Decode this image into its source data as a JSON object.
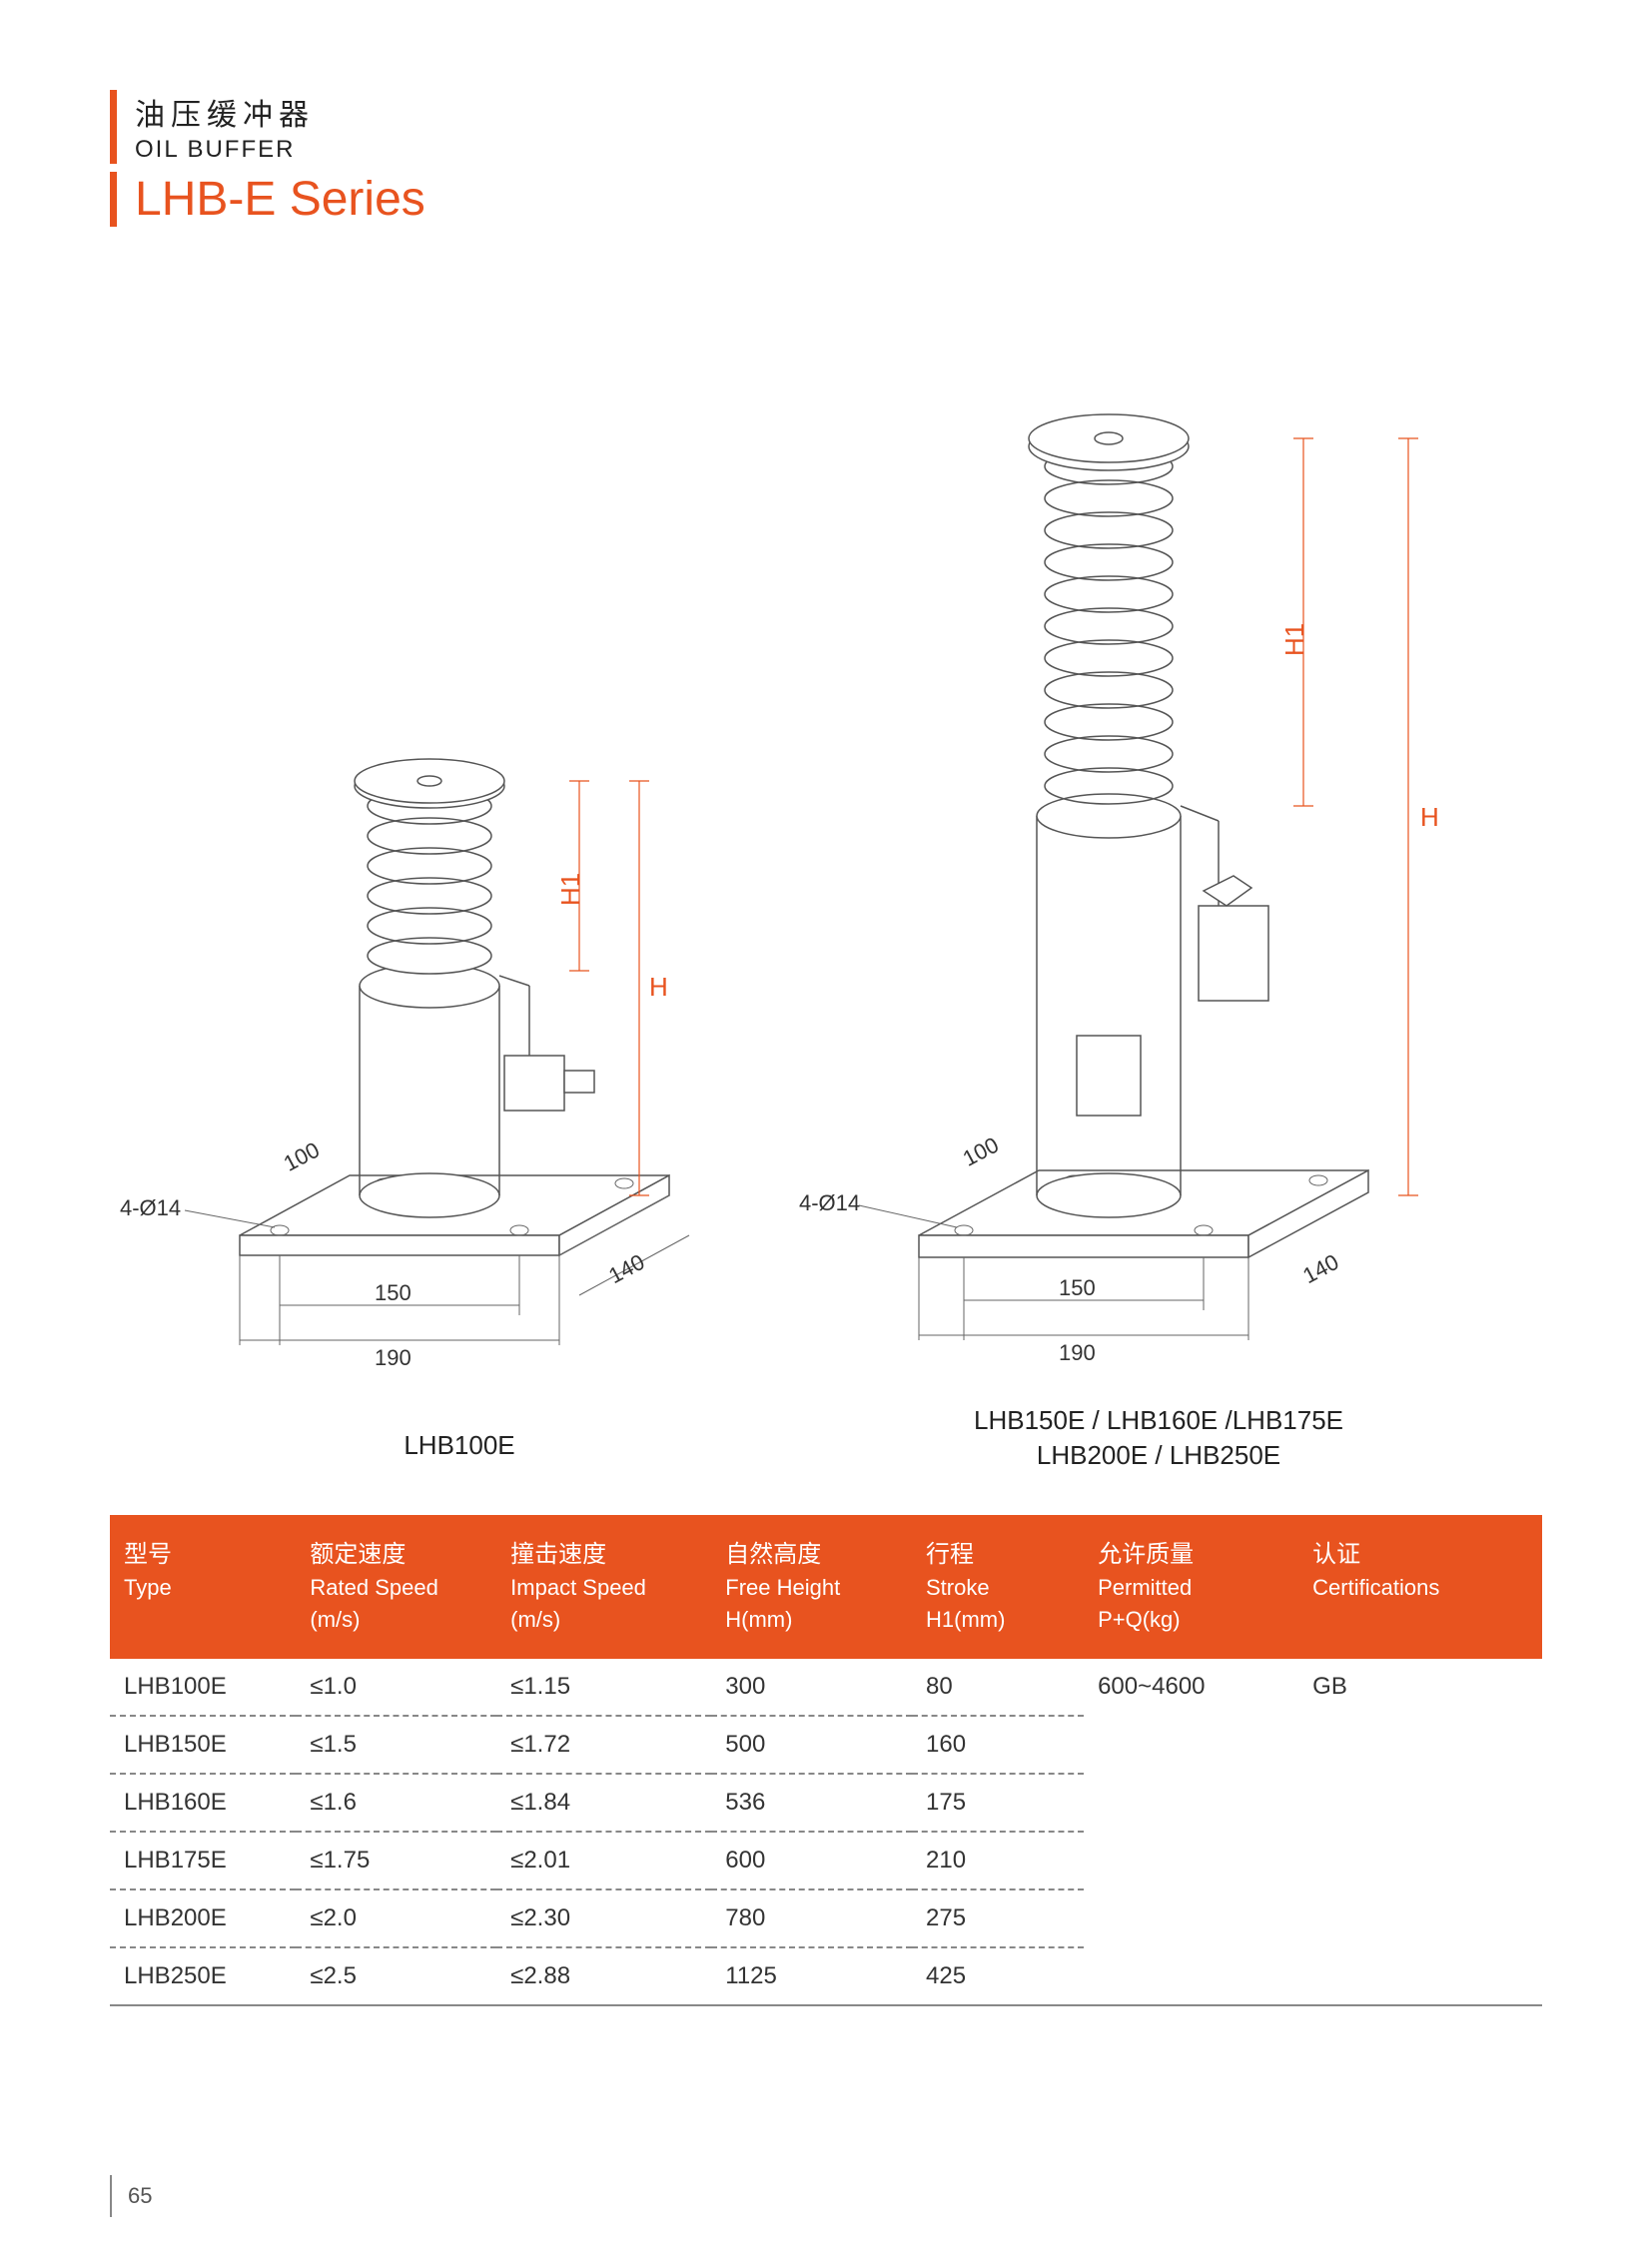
{
  "header": {
    "cn_title": "油压缓冲器",
    "en_title": "OIL BUFFER",
    "series_title": "LHB-E Series"
  },
  "colors": {
    "accent": "#e8531f",
    "line": "#666666",
    "text": "#333333",
    "table_header_bg": "#e8531f",
    "table_header_fg": "#ffffff",
    "dash": "#888888"
  },
  "diagrams": {
    "left": {
      "label": "LHB100E",
      "dims": {
        "hole": "4-Ø14",
        "base_inner": "150",
        "base_outer": "190",
        "depth_inner": "100",
        "depth_outer": "140",
        "height": "H",
        "spring": "H1"
      }
    },
    "right": {
      "label_line1": "LHB150E / LHB160E /LHB175E",
      "label_line2": "LHB200E / LHB250E",
      "dims": {
        "hole": "4-Ø14",
        "base_inner": "150",
        "base_outer": "190",
        "depth_inner": "100",
        "depth_outer": "140",
        "height": "H",
        "spring": "H1"
      }
    }
  },
  "table": {
    "columns": [
      {
        "cn": "型号",
        "en": "Type",
        "un": ""
      },
      {
        "cn": "额定速度",
        "en": "Rated Speed",
        "un": "(m/s)"
      },
      {
        "cn": "撞击速度",
        "en": "Impact Speed",
        "un": "(m/s)"
      },
      {
        "cn": "自然高度",
        "en": "Free Height",
        "un": "H(mm)"
      },
      {
        "cn": "行程",
        "en": "Stroke",
        "un": "H1(mm)"
      },
      {
        "cn": "允许质量",
        "en": "Permitted",
        "un": "P+Q(kg)"
      },
      {
        "cn": "认证",
        "en": "Certifications",
        "un": ""
      }
    ],
    "rows": [
      {
        "cells": [
          "LHB100E",
          "≤1.0",
          "≤1.15",
          "300",
          "80",
          "600~4600",
          "GB"
        ]
      },
      {
        "cells": [
          "LHB150E",
          "≤1.5",
          "≤1.72",
          "500",
          "160",
          "",
          ""
        ]
      },
      {
        "cells": [
          "LHB160E",
          "≤1.6",
          "≤1.84",
          "536",
          "175",
          "",
          ""
        ]
      },
      {
        "cells": [
          "LHB175E",
          "≤1.75",
          "≤2.01",
          "600",
          "210",
          "",
          ""
        ]
      },
      {
        "cells": [
          "LHB200E",
          "≤2.0",
          "≤2.30",
          "780",
          "275",
          "",
          ""
        ]
      },
      {
        "cells": [
          "LHB250E",
          "≤2.5",
          "≤2.88",
          "1125",
          "425",
          "",
          ""
        ]
      }
    ]
  },
  "page_number": "65"
}
